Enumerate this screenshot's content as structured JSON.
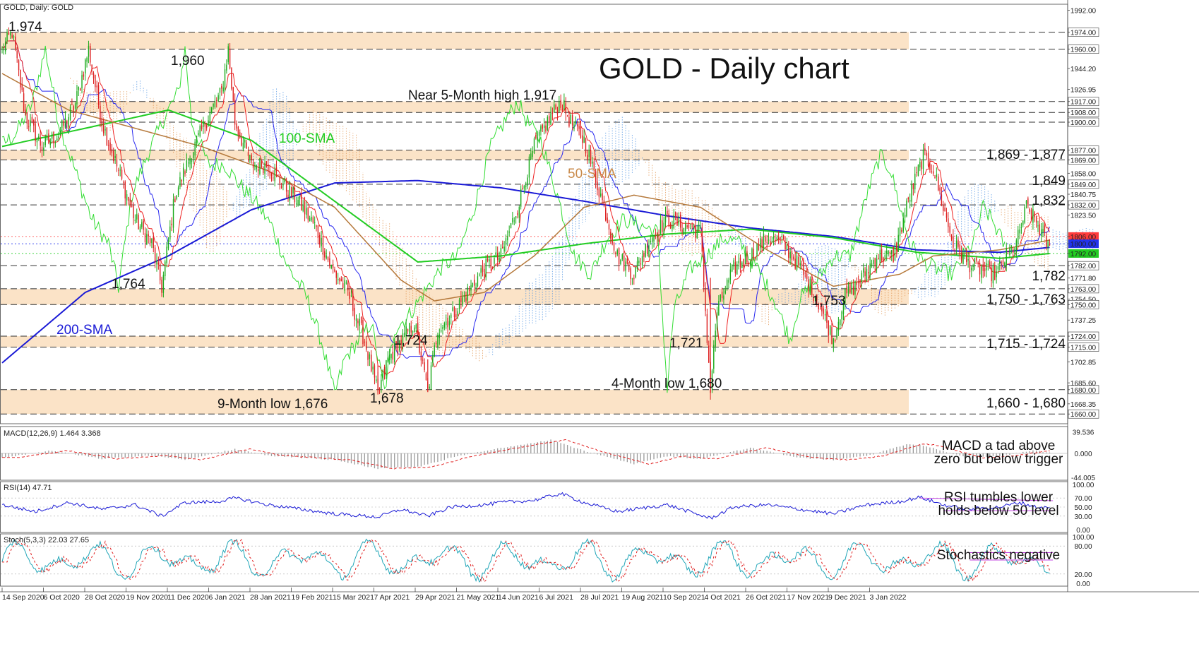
{
  "chart_data": {
    "type": "candlestick",
    "symbol": "GOLD",
    "header": "GOLD, Daily:  GOLD",
    "title": "GOLD - Daily chart",
    "x_dates": [
      "14 Sep 2020",
      "6 Oct 2020",
      "28 Oct 2020",
      "19 Nov 2020",
      "11 Dec 2020",
      "6 Jan 2021",
      "28 Jan 2021",
      "19 Feb 2021",
      "15 Mar 2021",
      "7 Apr 2021",
      "29 Apr 2021",
      "21 May 2021",
      "14 Jun 2021",
      "6 Jul 2021",
      "28 Jul 2021",
      "19 Aug 2021",
      "10 Sep 2021",
      "4 Oct 2021",
      "26 Oct 2021",
      "17 Nov 2021",
      "9 Dec 2021",
      "3 Jan 2022"
    ],
    "price_axis": {
      "ylim": [
        1652,
        1997
      ],
      "ticks": [
        "1992.00",
        "1974.00",
        "1960.00",
        "1944.20",
        "1926.95",
        "1917.00",
        "1908.00",
        "1900.00",
        "1877.00",
        "1869.00",
        "1858.00",
        "1849.00",
        "1840.75",
        "1832.00",
        "1823.50",
        "1806.00",
        "1800.00",
        "1792.00",
        "1782.00",
        "1771.80",
        "1763.00",
        "1754.50",
        "1750.00",
        "1737.25",
        "1724.00",
        "1715.00",
        "1702.85",
        "1685.60",
        "1680.00",
        "1668.35",
        "1660.00"
      ]
    },
    "highlight_ticks": [
      {
        "value": 1806,
        "label": "1806.00",
        "color": "#ff3b3b"
      },
      {
        "value": 1800,
        "label": "1800.00",
        "color": "#2233ee"
      },
      {
        "value": 1792,
        "label": "1792.00",
        "color": "#22cc22"
      }
    ],
    "key_levels": [
      1974,
      1960,
      1917,
      1908,
      1900,
      1877,
      1869,
      1849,
      1832,
      1782,
      1763,
      1750,
      1724,
      1715,
      1680,
      1660
    ],
    "zones": [
      {
        "from": 1960,
        "to": 1974
      },
      {
        "from": 1908,
        "to": 1917
      },
      {
        "from": 1869,
        "to": 1877
      },
      {
        "from": 1750,
        "to": 1763
      },
      {
        "from": 1715,
        "to": 1724
      },
      {
        "from": 1660,
        "to": 1680
      }
    ],
    "annotations": [
      {
        "text": "1,974",
        "style": "black"
      },
      {
        "text": "1,960",
        "style": "black"
      },
      {
        "text": "Near 5-Month high 1,917",
        "style": "black"
      },
      {
        "text": "100-SMA",
        "style": "green"
      },
      {
        "text": "50-SMA",
        "style": "tan"
      },
      {
        "text": "1,764",
        "style": "black"
      },
      {
        "text": "200-SMA",
        "style": "blue"
      },
      {
        "text": "1,724",
        "style": "black"
      },
      {
        "text": "1,721",
        "style": "black"
      },
      {
        "text": "1,753",
        "style": "black"
      },
      {
        "text": "4-Month low 1,680",
        "style": "black"
      },
      {
        "text": "9-Month low 1,676",
        "style": "black"
      },
      {
        "text": "1,678",
        "style": "black"
      }
    ],
    "right_labels": [
      {
        "text": "1,869 - 1,877",
        "color": "#1a1ad6"
      },
      {
        "text": "1,849",
        "color": "#1a1ad6"
      },
      {
        "text": "1,832",
        "color": "#1a1ad6"
      },
      {
        "text": "1,782",
        "color": "#e01b1b"
      },
      {
        "text": "1,750 - 1,763",
        "color": "#e01b1b"
      },
      {
        "text": "1,715 - 1,724",
        "color": "#e01b1b"
      },
      {
        "text": "1,660 - 1,680",
        "color": "#e01b1b"
      }
    ],
    "price_anchors": [
      [
        0,
        1960
      ],
      [
        6,
        1974
      ],
      [
        14,
        1905
      ],
      [
        24,
        1880
      ],
      [
        34,
        1890
      ],
      [
        44,
        1915
      ],
      [
        52,
        1960
      ],
      [
        60,
        1900
      ],
      [
        70,
        1860
      ],
      [
        80,
        1820
      ],
      [
        90,
        1800
      ],
      [
        96,
        1764
      ],
      [
        104,
        1840
      ],
      [
        114,
        1875
      ],
      [
        124,
        1905
      ],
      [
        132,
        1925
      ],
      [
        136,
        1960
      ],
      [
        140,
        1900
      ],
      [
        150,
        1865
      ],
      [
        160,
        1865
      ],
      [
        168,
        1850
      ],
      [
        178,
        1835
      ],
      [
        188,
        1815
      ],
      [
        198,
        1780
      ],
      [
        208,
        1760
      ],
      [
        218,
        1720
      ],
      [
        226,
        1676
      ],
      [
        232,
        1705
      ],
      [
        240,
        1720
      ],
      [
        248,
        1735
      ],
      [
        256,
        1678
      ],
      [
        262,
        1730
      ],
      [
        270,
        1740
      ],
      [
        280,
        1760
      ],
      [
        290,
        1780
      ],
      [
        300,
        1790
      ],
      [
        310,
        1830
      ],
      [
        320,
        1880
      ],
      [
        330,
        1905
      ],
      [
        336,
        1917
      ],
      [
        342,
        1900
      ],
      [
        350,
        1885
      ],
      [
        360,
        1840
      ],
      [
        370,
        1790
      ],
      [
        380,
        1775
      ],
      [
        390,
        1805
      ],
      [
        400,
        1820
      ],
      [
        410,
        1815
      ],
      [
        420,
        1810
      ],
      [
        426,
        1680
      ],
      [
        430,
        1745
      ],
      [
        440,
        1780
      ],
      [
        450,
        1790
      ],
      [
        460,
        1805
      ],
      [
        470,
        1800
      ],
      [
        480,
        1780
      ],
      [
        490,
        1755
      ],
      [
        500,
        1721
      ],
      [
        506,
        1755
      ],
      [
        516,
        1770
      ],
      [
        526,
        1790
      ],
      [
        536,
        1790
      ],
      [
        546,
        1840
      ],
      [
        554,
        1872
      ],
      [
        560,
        1862
      ],
      [
        566,
        1830
      ],
      [
        572,
        1800
      ],
      [
        580,
        1785
      ],
      [
        590,
        1778
      ],
      [
        598,
        1775
      ],
      [
        604,
        1790
      ],
      [
        610,
        1800
      ],
      [
        616,
        1830
      ],
      [
        622,
        1818
      ],
      [
        630,
        1795
      ]
    ],
    "sma": {
      "200-SMA": [
        [
          0,
          1702
        ],
        [
          50,
          1760
        ],
        [
          100,
          1790
        ],
        [
          150,
          1828
        ],
        [
          200,
          1850
        ],
        [
          250,
          1852
        ],
        [
          300,
          1846
        ],
        [
          350,
          1835
        ],
        [
          400,
          1823
        ],
        [
          450,
          1813
        ],
        [
          500,
          1806
        ],
        [
          550,
          1795
        ],
        [
          600,
          1793
        ],
        [
          630,
          1797
        ]
      ],
      "100-SMA": [
        [
          0,
          1880
        ],
        [
          50,
          1895
        ],
        [
          100,
          1910
        ],
        [
          150,
          1885
        ],
        [
          200,
          1835
        ],
        [
          250,
          1785
        ],
        [
          300,
          1790
        ],
        [
          350,
          1800
        ],
        [
          400,
          1808
        ],
        [
          450,
          1812
        ],
        [
          500,
          1805
        ],
        [
          550,
          1793
        ],
        [
          600,
          1788
        ],
        [
          630,
          1792
        ]
      ],
      "50-SMA": [
        [
          0,
          1940
        ],
        [
          40,
          1910
        ],
        [
          80,
          1895
        ],
        [
          120,
          1880
        ],
        [
          160,
          1860
        ],
        [
          200,
          1830
        ],
        [
          240,
          1770
        ],
        [
          260,
          1753
        ],
        [
          290,
          1760
        ],
        [
          320,
          1790
        ],
        [
          350,
          1830
        ],
        [
          380,
          1840
        ],
        [
          420,
          1830
        ],
        [
          460,
          1795
        ],
        [
          500,
          1765
        ],
        [
          540,
          1775
        ],
        [
          560,
          1790
        ],
        [
          600,
          1795
        ],
        [
          630,
          1803
        ]
      ]
    },
    "ichimoku_cloud_extension": {
      "from": 1794,
      "to": 1813
    },
    "macd": {
      "label": "MACD(12,26,9) 1.464 3.368",
      "ylim": [
        -44,
        44
      ],
      "ticks": [
        "39.536",
        "0.000",
        "-44.005"
      ],
      "anchors": [
        [
          0,
          -8
        ],
        [
          30,
          5
        ],
        [
          60,
          -10
        ],
        [
          90,
          -4
        ],
        [
          110,
          -12
        ],
        [
          140,
          8
        ],
        [
          160,
          -4
        ],
        [
          200,
          -12
        ],
        [
          226,
          -28
        ],
        [
          250,
          -25
        ],
        [
          270,
          -8
        ],
        [
          300,
          10
        ],
        [
          330,
          25
        ],
        [
          350,
          5
        ],
        [
          380,
          -20
        ],
        [
          400,
          -5
        ],
        [
          420,
          -10
        ],
        [
          450,
          10
        ],
        [
          480,
          -8
        ],
        [
          500,
          -12
        ],
        [
          520,
          -5
        ],
        [
          545,
          18
        ],
        [
          555,
          14
        ],
        [
          580,
          -8
        ],
        [
          600,
          -5
        ],
        [
          620,
          5
        ],
        [
          630,
          1.5
        ]
      ],
      "annotation": [
        "MACD a tad above",
        "zero but below trigger"
      ]
    },
    "rsi": {
      "label": "RSI(14) 47.71",
      "ylim": [
        0,
        100
      ],
      "ticks": [
        "100.00",
        "70.00",
        "50.00",
        "30.00",
        "0.00"
      ],
      "anchors": [
        [
          0,
          55
        ],
        [
          20,
          40
        ],
        [
          40,
          60
        ],
        [
          60,
          45
        ],
        [
          80,
          55
        ],
        [
          96,
          30
        ],
        [
          110,
          60
        ],
        [
          130,
          62
        ],
        [
          140,
          70
        ],
        [
          160,
          55
        ],
        [
          180,
          45
        ],
        [
          200,
          35
        ],
        [
          226,
          28
        ],
        [
          240,
          45
        ],
        [
          256,
          30
        ],
        [
          270,
          50
        ],
        [
          290,
          55
        ],
        [
          300,
          60
        ],
        [
          320,
          65
        ],
        [
          336,
          80
        ],
        [
          350,
          60
        ],
        [
          370,
          40
        ],
        [
          400,
          55
        ],
        [
          426,
          25
        ],
        [
          440,
          50
        ],
        [
          460,
          55
        ],
        [
          480,
          45
        ],
        [
          500,
          35
        ],
        [
          520,
          55
        ],
        [
          540,
          62
        ],
        [
          552,
          72
        ],
        [
          566,
          55
        ],
        [
          580,
          45
        ],
        [
          600,
          50
        ],
        [
          612,
          60
        ],
        [
          622,
          50
        ],
        [
          630,
          47.71
        ]
      ],
      "annotation": [
        "RSI tumbles lower",
        "holds below 50 level"
      ]
    },
    "stochastics": {
      "label": "Stoch(5,3,3) 22.03 27.65",
      "ylim": [
        0,
        100
      ],
      "ticks": [
        "100.00",
        "80.00",
        "20.00",
        "0.00"
      ],
      "annotation": [
        "Stochastics negative"
      ]
    }
  }
}
